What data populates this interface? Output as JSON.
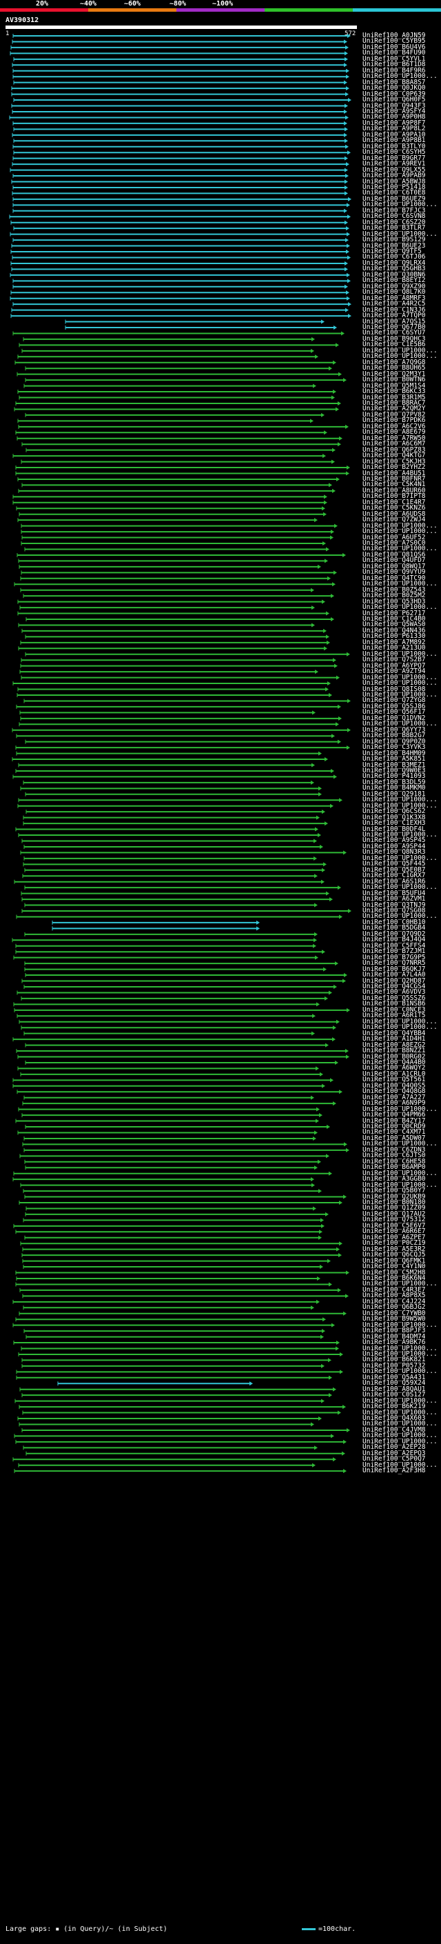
{
  "scale": {
    "labels": [
      "20%",
      "~40%",
      "~60%",
      "~80%",
      "~100%"
    ],
    "colors": [
      "#e8112d",
      "#e87a11",
      "#a12bc6",
      "#2fc12a",
      "#2bc6d6"
    ]
  },
  "query": {
    "name": "AV390312",
    "start": "1",
    "end": "572"
  },
  "colors": {
    "high": "#33c6d6",
    "mid": "#2fba37",
    "gap": "#ffffff",
    "bg": "#000000"
  },
  "hits": [
    "UniRef100_A0JN59",
    "UniRef100_C5YB95",
    "UniRef100_B6U4V6",
    "UniRef100_B4FU90",
    "UniRef100_C5YVL1",
    "UniRef100_B6T1D8",
    "UniRef100_B4F9R6",
    "UniRef100_UP1000...",
    "UniRef100_B8A8S7",
    "UniRef100_Q0JKQ0",
    "UniRef100_C0P639",
    "UniRef100_Q6H0F5",
    "UniRef100_Q943F3",
    "UniRef100_A9SFY4",
    "UniRef100_A9P0H8",
    "UniRef100_A9P8F7",
    "UniRef100_A9P8L2",
    "UniRef100_A9PA10",
    "UniRef100_A9P8B1",
    "UniRef100_B3TLY0",
    "UniRef100_C6SYH5",
    "UniRef100_B9GR77",
    "UniRef100_A9REV1",
    "UniRef100_Q9LX55",
    "UniRef100_A9PAB9",
    "UniRef100_A5BWJ8",
    "UniRef100_P51418",
    "UniRef100_C6T0E8",
    "UniRef100_B6UEZ9",
    "UniRef100_UP1000...",
    "UniRef100_B7FJC3",
    "UniRef100_C6SVN8",
    "UniRef100_C6SZ20",
    "UniRef100_B3TLR7",
    "UniRef100_UP1000...",
    "UniRef100_B9S129",
    "UniRef100_B6UE23",
    "UniRef100_Q9TF5",
    "UniRef100_C6TJ06",
    "UniRef100_Q9LRX4",
    "UniRef100_Q5GHB3",
    "UniRef100_Q30BN6",
    "UniRef100_B8EYI2",
    "UniRef100_Q9XZ90",
    "UniRef100_Q8L7K0",
    "UniRef100_A8MRF3",
    "UniRef100_A4R2C5",
    "UniRef100_C1N3J6",
    "UniRef100_A7TQP0",
    "UniRef100_A7QS15",
    "UniRef100_Q677B0",
    "UniRef100_C6SYU7",
    "UniRef100_B9QHC3",
    "UniRef100_C1E5B6",
    "UniRef100_UP1000...",
    "UniRef100_UP1000...",
    "UniRef100_A7Q9G8",
    "UniRef100_B8UH65",
    "UniRef100_Q2M3Y1",
    "UniRef100_B0WTN6",
    "UniRef100_Q5M1S4",
    "UniRef100_B6KC33",
    "UniRef100_B3R1M5",
    "UniRef100_B8RAC7",
    "UniRef100_A2QM2Y",
    "UniRef100_Q7PV82",
    "UniRef100_B7PDK6",
    "UniRef100_A6C2V6",
    "UniRef100_A8E679",
    "UniRef100_A7RW50",
    "UniRef100_A6C6M7",
    "UniRef100_Q6PZ83",
    "UniRef100_Q4KTG7",
    "UniRef100_C5KJH3",
    "UniRef100_B2YHZ2",
    "UniRef100_A4BU51",
    "UniRef100_B0FNR7",
    "UniRef100_C5K4N1",
    "UniRef100_A8UR60",
    "UniRef100_B7IPT8",
    "UniRef100_C1E4R7",
    "UniRef100_C5KNZ6",
    "UniRef100_A6UDS8",
    "UniRef100_Q7ZWJ4",
    "UniRef100_UP1000...",
    "UniRef100_UP1000...",
    "UniRef100_A6UF52",
    "UniRef100_A7S0C0",
    "UniRef100_UP1000...",
    "UniRef100_Q81QS6",
    "UniRef100_Q4UFD7",
    "UniRef100_Q8WQ17",
    "UniRef100_Q9VYU9",
    "UniRef100_Q4TC90",
    "UniRef100_UP1000...",
    "UniRef100_B0Z543",
    "UniRef100_B0Z5M2",
    "UniRef100_Q53HD3",
    "UniRef100_UP1000...",
    "UniRef100_P62717",
    "UniRef100_C1C4B0",
    "UniRef100_Q5WAS0",
    "UniRef100_Q4N436",
    "UniRef100_P61330",
    "UniRef100_A7M892",
    "UniRef100_A213U0",
    "UniRef100_UP1000...",
    "UniRef100_Q7S2B7",
    "UniRef100_A6YPQ7",
    "UniRef100_A9ZT94",
    "UniRef100_UP1000...",
    "UniRef100_UP1000...",
    "UniRef100_Q8IS08",
    "UniRef100_UP1000...",
    "UniRef100_Q7ZYG8",
    "UniRef100_Q5SJ86",
    "UniRef100_Q56F17",
    "UniRef100_Q1DVN2",
    "UniRef100_UP1000...",
    "UniRef100_Q6YY73",
    "UniRef100_B8B2G7",
    "UniRef100_Q9P0Z0",
    "UniRef100_C3YVK3",
    "UniRef100_B4HM09",
    "UniRef100_A5K851",
    "UniRef100_B3MEZ1",
    "UniRef100_Q9W0E3",
    "UniRef100_P41093",
    "UniRef100_B3DL59",
    "UniRef100_B4MKM0",
    "UniRef100_Q29181",
    "UniRef100_UP1000...",
    "UniRef100_UP1000...",
    "UniRef100_Q6CS62",
    "UniRef100_Q1K3X8",
    "UniRef100_C1EXH3",
    "UniRef100_B0DF4L",
    "UniRef100_UP1000...",
    "UniRef100_A9SP45",
    "UniRef100_A9SP44",
    "UniRef100_Q8N3R3",
    "UniRef100_UP1000...",
    "UniRef100_Q5F445",
    "UniRef100_Q5E0B7",
    "UniRef100_C1GRX7",
    "UniRef100_A6S1R6",
    "UniRef100_UP1000...",
    "UniRef100_B5UFU4",
    "UniRef100_A6ZVM1",
    "UniRef100_Q3TNJ9",
    "UniRef100_Q7SG08",
    "UniRef100_UP1000...",
    "UniRef100_C0HB10",
    "UniRef100_B5DGB4",
    "UniRef100_Q7Q9D2",
    "UniRef100_B4J4Q4",
    "UniRef100_C5FFS4",
    "UniRef100_B7ZJM1",
    "UniRef100_B7G9P5",
    "UniRef100_Q7NRR5",
    "UniRef100_B6QKJ7",
    "UniRef100_A7L4A0",
    "UniRef100_Q2HD87",
    "UniRef100_Q4CGS4",
    "UniRef100_A6VDV3",
    "UniRef100_Q5SSZ6",
    "UniRef100_B1NSB6",
    "UniRef100_C0NCE3",
    "UniRef100_A6R1T5",
    "UniRef100_UP1000...",
    "UniRef100_UP1000...",
    "UniRef100_Q4YBB4",
    "UniRef100_A1D4H1",
    "UniRef100_A8EZG2",
    "UniRef100_B8NZZ1",
    "UniRef100_B0RG02",
    "UniRef100_Q4A4B0",
    "UniRef100_A6WQY2",
    "UniRef100_A1CRL0",
    "UniRef100_Q5T561",
    "UniRef100_Q4Q0S5",
    "UniRef100_Q4Q8G8",
    "UniRef100_A7A227",
    "UniRef100_A6N9P9",
    "UniRef100_UP1000...",
    "UniRef100_Q4PM66",
    "UniRef100_B4ZY17",
    "UniRef100_Q0CRD9",
    "UniRef100_C4XM71",
    "UniRef100_A5DW07",
    "UniRef100_UP1000...",
    "UniRef100_C6ZDN3",
    "UniRef100_C6JTS0",
    "UniRef100_C6HE58",
    "UniRef100_B6AMP0",
    "UniRef100_UP1000...",
    "UniRef100_A3GGB0",
    "UniRef100_UP1000...",
    "UniRef100_Q5B0Y7",
    "UniRef100_Q2UKB9",
    "UniRef100_B0N180",
    "UniRef100_Q1ZZ09",
    "UniRef100_Q17AU2",
    "UniRef100_Q75312",
    "UniRef100_C5E6V7",
    "UniRef100_A6R6E7",
    "UniRef100_A6ZPE7",
    "UniRef100_P0CZ19",
    "UniRef100_A5E3R2",
    "UniRef100_Q6CQJ5",
    "UniRef100_Q6FMK1",
    "UniRef100_C4Y1N0",
    "UniRef100_C5M2H8",
    "UniRef100_B6K6N4",
    "UniRef100_UP1000...",
    "UniRef100_C4R3E7",
    "UniRef100_A8P8X5",
    "UniRef100_C4J224",
    "UniRef100_Q6BJG2",
    "UniRef100_C7YWB0",
    "UniRef100_B9W5W0",
    "UniRef100_UP1000...",
    "UniRef100_B8PJF3",
    "UniRef100_B4DM74",
    "UniRef100_A9BK76",
    "UniRef100_UP1000...",
    "UniRef100_UP1000...",
    "UniRef100_B6K821",
    "UniRef100_P05732",
    "UniRef100_UP1000...",
    "UniRef100_Q5A431",
    "UniRef100_Q59X24",
    "UniRef100_A8QAU1",
    "UniRef100_C0S127",
    "UniRef100_UP1000...",
    "UniRef100_B6K219",
    "UniRef100_UP1000...",
    "UniRef100_Q4X603",
    "UniRef100_UP1000...",
    "UniRef100_C4JVM8",
    "UniRef100_UP1000...",
    "UniRef100_UP1000...",
    "UniRef100_A2EP28",
    "UniRef100_A2EPQ3",
    "UniRef100_C5P0Q7",
    "UniRef100_UP1000...",
    "UniRef100_A2F3H8"
  ],
  "footer": {
    "text": "Large gaps: ▪ (in Query)/~ (in Subject)",
    "scale_text": "=100char."
  }
}
